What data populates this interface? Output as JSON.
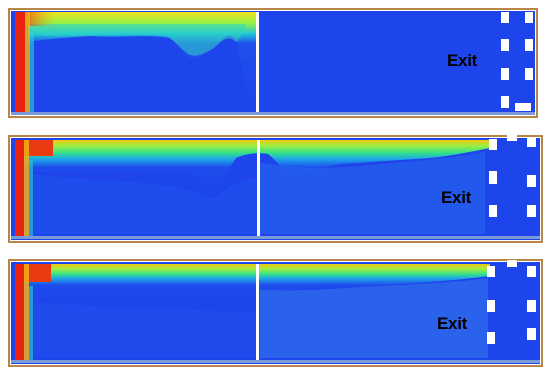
{
  "panels": [
    {
      "exit_label": "Exit"
    },
    {
      "exit_label": "Exit"
    },
    {
      "exit_label": "Exit"
    }
  ],
  "colors": {
    "frame": "#b8864a",
    "hot": "#e81a0c",
    "warm": "#f6ce10",
    "mid": "#3cec7a",
    "cool": "#1ab8e8",
    "cold": "#1e44ec",
    "divider": "#ffffff",
    "exit_blocks": "#ffffff"
  }
}
